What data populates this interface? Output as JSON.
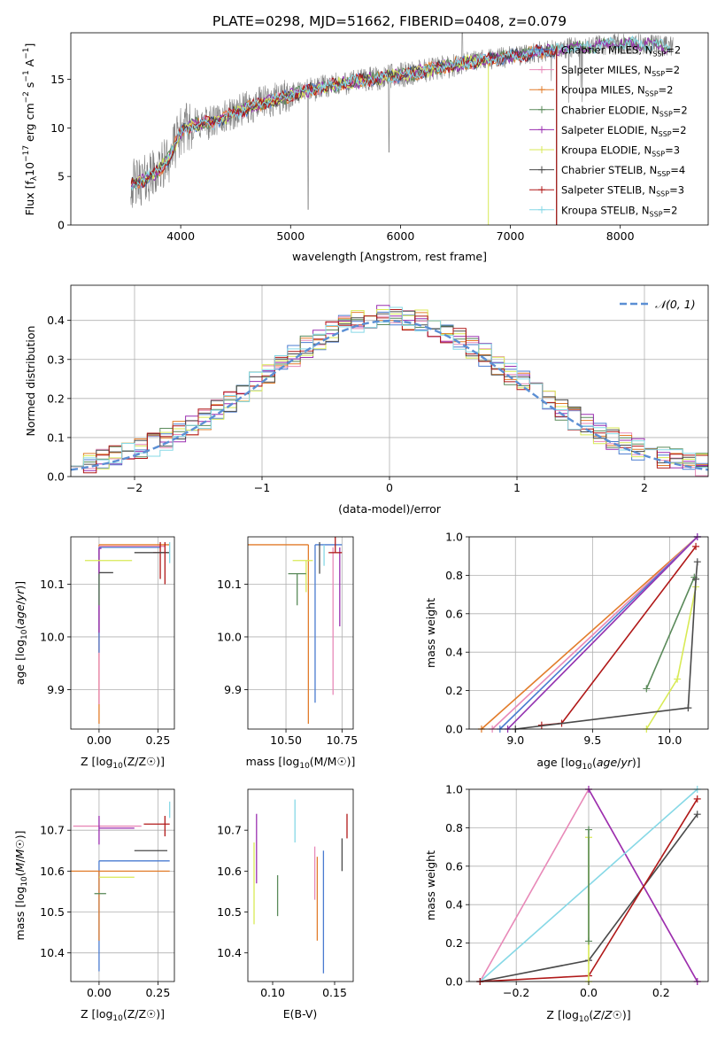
{
  "title": "PLATE=0298, MJD=51662, FIBERID=0408, z=0.079",
  "colors": {
    "Chabrier MILES": "#4a7bd0",
    "Salpeter MILES": "#e889b8",
    "Kroupa MILES": "#e27c2a",
    "Chabrier ELODIE": "#5a8a5a",
    "Salpeter ELODIE": "#9a2fb0",
    "Kroupa ELODIE": "#d8ea55",
    "Chabrier STELIB": "#4a4a4a",
    "Salpeter STELIB": "#b01818",
    "Kroupa STELIB": "#86d8e6",
    "data": "#7f7f7f",
    "gaussian": "#5b8fd4"
  },
  "chart_data": [
    {
      "id": "spectrum",
      "type": "line",
      "title": "PLATE=0298, MJD=51662, FIBERID=0408, z=0.079",
      "xlabel": "wavelength [Angstrom, rest frame]",
      "ylabel": "Flux [f_λ10^{-17} erg cm^{-2} s^{-1} A^{-1}]",
      "xlim": [
        3000,
        8800
      ],
      "ylim": [
        0,
        19.8
      ],
      "xticks": [
        4000,
        5000,
        6000,
        7000,
        8000
      ],
      "yticks": [
        0,
        5,
        10,
        15
      ],
      "legend_position": "top-right",
      "legend": [
        {
          "name": "Chabrier MILES",
          "nssp": "2"
        },
        {
          "name": "Salpeter MILES",
          "nssp": "2"
        },
        {
          "name": "Kroupa MILES",
          "nssp": "2"
        },
        {
          "name": "Chabrier ELODIE",
          "nssp": "2"
        },
        {
          "name": "Salpeter ELODIE",
          "nssp": "2"
        },
        {
          "name": "Kroupa ELODIE",
          "nssp": "3"
        },
        {
          "name": "Chabrier STELIB",
          "nssp": "4"
        },
        {
          "name": "Salpeter STELIB",
          "nssp": "3"
        },
        {
          "name": "Kroupa STELIB",
          "nssp": "2"
        }
      ],
      "continuum": {
        "x": [
          3550,
          3650,
          3800,
          3900,
          4000,
          4100,
          4300,
          4500,
          4700,
          4900,
          5100,
          5300,
          5500,
          5700,
          5900,
          6100,
          6300,
          6500,
          6700,
          6900,
          7100,
          7300,
          7500,
          7700,
          7900,
          8100,
          8300,
          8500
        ],
        "y": [
          4.2,
          4.5,
          5.6,
          7.0,
          9.6,
          10.3,
          10.6,
          11.6,
          12.4,
          13.0,
          13.7,
          14.2,
          14.6,
          15.0,
          15.3,
          15.6,
          16.1,
          16.5,
          16.9,
          17.2,
          17.5,
          17.9,
          18.2,
          18.4,
          18.6,
          18.7,
          18.5,
          18.3
        ]
      }
    },
    {
      "id": "residuals",
      "type": "bar",
      "xlabel": "(data-model)/error",
      "ylabel": "Normed distribution",
      "xlim": [
        -2.5,
        2.5
      ],
      "ylim": [
        0,
        0.49
      ],
      "xticks": [
        -2,
        -1,
        0,
        1,
        2
      ],
      "xtick_labels": [
        "−2",
        "−1",
        "0",
        "1",
        "2"
      ],
      "yticks": [
        0.0,
        0.1,
        0.2,
        0.3,
        0.4
      ],
      "legend": [
        {
          "name": "𝒩(0, 1)",
          "style": "dashed"
        }
      ],
      "legend_position": "top-right",
      "bin_width": 0.1
    },
    {
      "id": "age-vs-Z",
      "type": "scatter",
      "xlabel": "Z [log10(Z/Z☉)]",
      "ylabel": "age  [log10(age/yr)]",
      "xlim": [
        -0.12,
        0.32
      ],
      "ylim": [
        9.825,
        10.19
      ],
      "xticks": [
        0.0,
        0.25
      ],
      "xtick_labels": [
        "0.00",
        "0.25"
      ],
      "yticks": [
        9.9,
        10.0,
        10.1
      ],
      "yticks_labels": [
        "9.9",
        "10.0",
        "10.1"
      ],
      "points": [
        {
          "model": "Kroupa MILES",
          "x": 0.0,
          "y": 10.175,
          "xerr": [
            0.0,
            0.3
          ],
          "yerr": [
            0.34,
            0.0
          ]
        },
        {
          "model": "Salpeter MILES",
          "x": 0.0,
          "y": 10.172,
          "xerr": [
            0.0,
            0.28
          ],
          "yerr": [
            0.3,
            0.0
          ]
        },
        {
          "model": "Chabrier MILES",
          "x": 0.0,
          "y": 10.17,
          "xerr": [
            0.0,
            0.26
          ],
          "yerr": [
            0.2,
            0.0
          ]
        },
        {
          "model": "Salpeter ELODIE",
          "x": 0.0,
          "y": 10.168,
          "xerr": [
            0.0,
            0.01
          ],
          "yerr": [
            0.16,
            0.0
          ]
        },
        {
          "model": "Chabrier ELODIE",
          "x": 0.0,
          "y": 10.12,
          "xerr": [
            0.0,
            0.0
          ],
          "yerr": [
            0.06,
            0.0
          ]
        },
        {
          "model": "Kroupa ELODIE",
          "x": 0.04,
          "y": 10.145,
          "xerr": [
            0.1,
            0.1
          ],
          "yerr": [
            0.0,
            0.0
          ]
        },
        {
          "model": "Chabrier STELIB",
          "x": 0.0,
          "y": 10.122,
          "xerr": [
            0.0,
            0.06
          ],
          "yerr": [
            0.0,
            0.0
          ]
        },
        {
          "model": "Salpeter STELIB",
          "x": 0.26,
          "y": 10.16,
          "xerr": [
            0.03,
            0.03
          ],
          "yerr": [
            0.05,
            0.02
          ]
        },
        {
          "model": "Chabrier STELIB",
          "x": 0.25,
          "y": 10.16,
          "xerr": [
            0.1,
            0.05
          ],
          "yerr": [
            0.0,
            0.0
          ]
        },
        {
          "model": "Salpeter STELIB",
          "x": 0.28,
          "y": 10.16,
          "xerr": [
            0.0,
            0.0
          ],
          "yerr": [
            0.06,
            0.02
          ]
        },
        {
          "model": "Kroupa STELIB",
          "x": 0.3,
          "y": 10.18,
          "xerr": [
            0.0,
            0.0
          ],
          "yerr": [
            0.04,
            0.0
          ]
        }
      ]
    },
    {
      "id": "age-vs-mass",
      "type": "scatter",
      "xlabel": "mass [log10(M/M☉)]",
      "xlim": [
        10.33,
        10.8
      ],
      "ylim": [
        9.825,
        10.19
      ],
      "xticks": [
        10.5,
        10.75
      ],
      "xtick_labels": [
        "10.50",
        "10.75"
      ],
      "yticks": [
        9.9,
        10.0,
        10.1
      ],
      "yticks_labels": [
        "9.9",
        "10.0",
        "10.1"
      ],
      "points": [
        {
          "model": "Kroupa MILES",
          "x": 10.6,
          "y": 10.175,
          "xerr": [
            0.27,
            0.0
          ],
          "yerr": [
            0.34,
            0.0
          ]
        },
        {
          "model": "Chabrier MILES",
          "x": 10.63,
          "y": 10.175,
          "xerr": [
            0.0,
            0.12
          ],
          "yerr": [
            0.3,
            0.0
          ]
        },
        {
          "model": "Salpeter MILES",
          "x": 10.71,
          "y": 10.17,
          "xerr": [
            0.0,
            0.0
          ],
          "yerr": [
            0.28,
            0.0
          ]
        },
        {
          "model": "Kroupa STELIB",
          "x": 10.67,
          "y": 10.175,
          "xerr": [
            0.0,
            0.0
          ],
          "yerr": [
            0.04,
            0.0
          ]
        },
        {
          "model": "Kroupa ELODIE",
          "x": 10.59,
          "y": 10.145,
          "xerr": [
            0.06,
            0.03
          ],
          "yerr": [
            0.06,
            0.0
          ]
        },
        {
          "model": "Chabrier ELODIE",
          "x": 10.55,
          "y": 10.12,
          "xerr": [
            0.04,
            0.04
          ],
          "yerr": [
            0.06,
            0.0
          ]
        },
        {
          "model": "Chabrier STELIB",
          "x": 10.65,
          "y": 10.12,
          "xerr": [
            0.0,
            0.0
          ],
          "yerr": [
            0.0,
            0.06
          ]
        },
        {
          "model": "Salpeter ELODIE",
          "x": 10.74,
          "y": 10.16,
          "xerr": [
            0.0,
            0.0
          ],
          "yerr": [
            0.14,
            0.01
          ]
        },
        {
          "model": "Salpeter STELIB",
          "x": 10.72,
          "y": 10.16,
          "xerr": [
            0.03,
            0.03
          ],
          "yerr": [
            0.0,
            0.03
          ]
        }
      ]
    },
    {
      "id": "weights-vs-age",
      "type": "line",
      "xlabel": "age  [log10(age/yr)]",
      "ylabel": "mass weight",
      "xlim": [
        8.7,
        10.25
      ],
      "ylim": [
        0.0,
        1.0
      ],
      "xticks": [
        9.0,
        9.5,
        10.0
      ],
      "xtick_labels": [
        "9.0",
        "9.5",
        "10.0"
      ],
      "yticks": [
        0.0,
        0.2,
        0.4,
        0.6,
        0.8,
        1.0
      ],
      "series": [
        {
          "model": "Kroupa MILES",
          "x": [
            8.78,
            10.18
          ],
          "y": [
            0.0,
            1.0
          ]
        },
        {
          "model": "Salpeter MILES",
          "x": [
            8.85,
            10.18
          ],
          "y": [
            0.0,
            1.0
          ]
        },
        {
          "model": "Chabrier MILES",
          "x": [
            8.9,
            10.18
          ],
          "y": [
            0.0,
            1.0
          ]
        },
        {
          "model": "Kroupa STELIB",
          "x": [
            8.95,
            10.18
          ],
          "y": [
            0.0,
            1.0
          ]
        },
        {
          "model": "Salpeter ELODIE",
          "x": [
            8.95,
            10.18
          ],
          "y": [
            0.0,
            1.0
          ]
        },
        {
          "model": "Salpeter STELIB",
          "x": [
            9.17,
            9.3,
            10.17
          ],
          "y": [
            0.02,
            0.03,
            0.95
          ]
        },
        {
          "model": "Chabrier ELODIE",
          "x": [
            9.85,
            10.16
          ],
          "y": [
            0.21,
            0.79
          ]
        },
        {
          "model": "Kroupa ELODIE",
          "x": [
            9.85,
            10.05,
            10.17
          ],
          "y": [
            0.0,
            0.26,
            0.74
          ]
        },
        {
          "model": "Chabrier STELIB",
          "x": [
            9.0,
            10.12,
            10.17,
            10.18
          ],
          "y": [
            0.0,
            0.11,
            0.78,
            0.87
          ]
        }
      ]
    },
    {
      "id": "mass-vs-Z",
      "type": "scatter",
      "xlabel": "Z [log10(Z/Z☉)]",
      "ylabel": "mass [log10(M/M☉)]",
      "xlim": [
        -0.12,
        0.32
      ],
      "ylim": [
        10.33,
        10.8
      ],
      "xticks": [
        0.0,
        0.25
      ],
      "xtick_labels": [
        "0.00",
        "0.25"
      ],
      "yticks": [
        10.4,
        10.5,
        10.6,
        10.7
      ],
      "yticks_labels": [
        "10.4",
        "10.5",
        "10.6",
        "10.7"
      ],
      "points": [
        {
          "model": "Salpeter MILES",
          "x": 0.0,
          "y": 10.71,
          "xerr": [
            0.11,
            0.18
          ],
          "yerr": [
            0.0,
            0.0
          ]
        },
        {
          "model": "Salpeter ELODIE",
          "x": 0.0,
          "y": 10.705,
          "xerr": [
            0.0,
            0.15
          ],
          "yerr": [
            0.04,
            0.03
          ]
        },
        {
          "model": "Salpeter STELIB",
          "x": 0.28,
          "y": 10.715,
          "xerr": [
            0.09,
            0.02
          ],
          "yerr": [
            0.03,
            0.02
          ]
        },
        {
          "model": "Chabrier STELIB",
          "x": 0.25,
          "y": 10.65,
          "xerr": [
            0.1,
            0.04
          ],
          "yerr": [
            0.0,
            0.0
          ]
        },
        {
          "model": "Chabrier MILES",
          "x": 0.0,
          "y": 10.625,
          "xerr": [
            0.0,
            0.3
          ],
          "yerr": [
            0.27,
            0.0
          ]
        },
        {
          "model": "Kroupa MILES",
          "x": 0.0,
          "y": 10.6,
          "xerr": [
            0.12,
            0.3
          ],
          "yerr": [
            0.17,
            0.0
          ]
        },
        {
          "model": "Kroupa ELODIE",
          "x": 0.0,
          "y": 10.585,
          "xerr": [
            0.0,
            0.15
          ],
          "yerr": [
            0.0,
            0.0
          ]
        },
        {
          "model": "Chabrier ELODIE",
          "x": 0.0,
          "y": 10.545,
          "xerr": [
            0.02,
            0.03
          ],
          "yerr": [
            0.0,
            0.0
          ]
        },
        {
          "model": "Kroupa STELIB",
          "x": 0.3,
          "y": 10.73,
          "xerr": [
            0.0,
            0.0
          ],
          "yerr": [
            0.0,
            0.04
          ]
        }
      ]
    },
    {
      "id": "mass-vs-EBV",
      "type": "scatter",
      "xlabel": "E(B-V)",
      "xlim": [
        0.08,
        0.165
      ],
      "ylim": [
        10.33,
        10.8
      ],
      "xticks": [
        0.1,
        0.15
      ],
      "xtick_labels": [
        "0.10",
        "0.15"
      ],
      "yticks": [
        10.4,
        10.5,
        10.6,
        10.7
      ],
      "yticks_labels": [
        "10.4",
        "10.5",
        "10.6",
        "10.7"
      ],
      "segments": [
        {
          "model": "Kroupa ELODIE",
          "x": 0.085,
          "y": [
            10.47,
            10.67
          ]
        },
        {
          "model": "Salpeter ELODIE",
          "x": 0.087,
          "y": [
            10.57,
            10.74
          ]
        },
        {
          "model": "Chabrier ELODIE",
          "x": 0.104,
          "y": [
            10.49,
            10.59
          ]
        },
        {
          "model": "Kroupa STELIB",
          "x": 0.118,
          "y": [
            10.67,
            10.775
          ]
        },
        {
          "model": "Salpeter MILES",
          "x": 0.134,
          "y": [
            10.53,
            10.66
          ]
        },
        {
          "model": "Kroupa MILES",
          "x": 0.136,
          "y": [
            10.43,
            10.635
          ]
        },
        {
          "model": "Chabrier MILES",
          "x": 0.141,
          "y": [
            10.35,
            10.65
          ]
        },
        {
          "model": "Chabrier STELIB",
          "x": 0.156,
          "y": [
            10.6,
            10.68
          ]
        },
        {
          "model": "Salpeter STELIB",
          "x": 0.16,
          "y": [
            10.68,
            10.74
          ]
        }
      ]
    },
    {
      "id": "weights-vs-Z",
      "type": "line",
      "xlabel": "Z [log10(Z/Z☉)]",
      "ylabel": "mass weight",
      "xlim": [
        -0.33,
        0.33
      ],
      "ylim": [
        0.0,
        1.0
      ],
      "xticks": [
        -0.2,
        0.0,
        0.2
      ],
      "xtick_labels": [
        "−0.2",
        "0.0",
        "0.2"
      ],
      "yticks": [
        0.0,
        0.2,
        0.4,
        0.6,
        0.8,
        1.0
      ],
      "series": [
        {
          "model": "Salpeter MILES",
          "x": [
            -0.3,
            0.0,
            0.3
          ],
          "y": [
            0.0,
            1.0,
            0.0
          ]
        },
        {
          "model": "Salpeter ELODIE",
          "x": [
            0.0,
            0.3
          ],
          "y": [
            1.0,
            0.0
          ]
        },
        {
          "model": "Kroupa STELIB",
          "x": [
            -0.3,
            0.3
          ],
          "y": [
            0.0,
            1.0
          ]
        },
        {
          "model": "Chabrier STELIB",
          "x": [
            -0.3,
            0.0,
            0.3
          ],
          "y": [
            0.0,
            0.11,
            0.87
          ]
        },
        {
          "model": "Salpeter STELIB",
          "x": [
            -0.3,
            0.0,
            0.3
          ],
          "y": [
            0.0,
            0.03,
            0.95
          ]
        },
        {
          "model": "Kroupa ELODIE",
          "x": [
            0.0,
            0.0
          ],
          "y": [
            0.0,
            0.75
          ]
        },
        {
          "model": "Chabrier ELODIE",
          "x": [
            0.0,
            0.0
          ],
          "y": [
            0.21,
            0.79
          ]
        }
      ]
    }
  ]
}
